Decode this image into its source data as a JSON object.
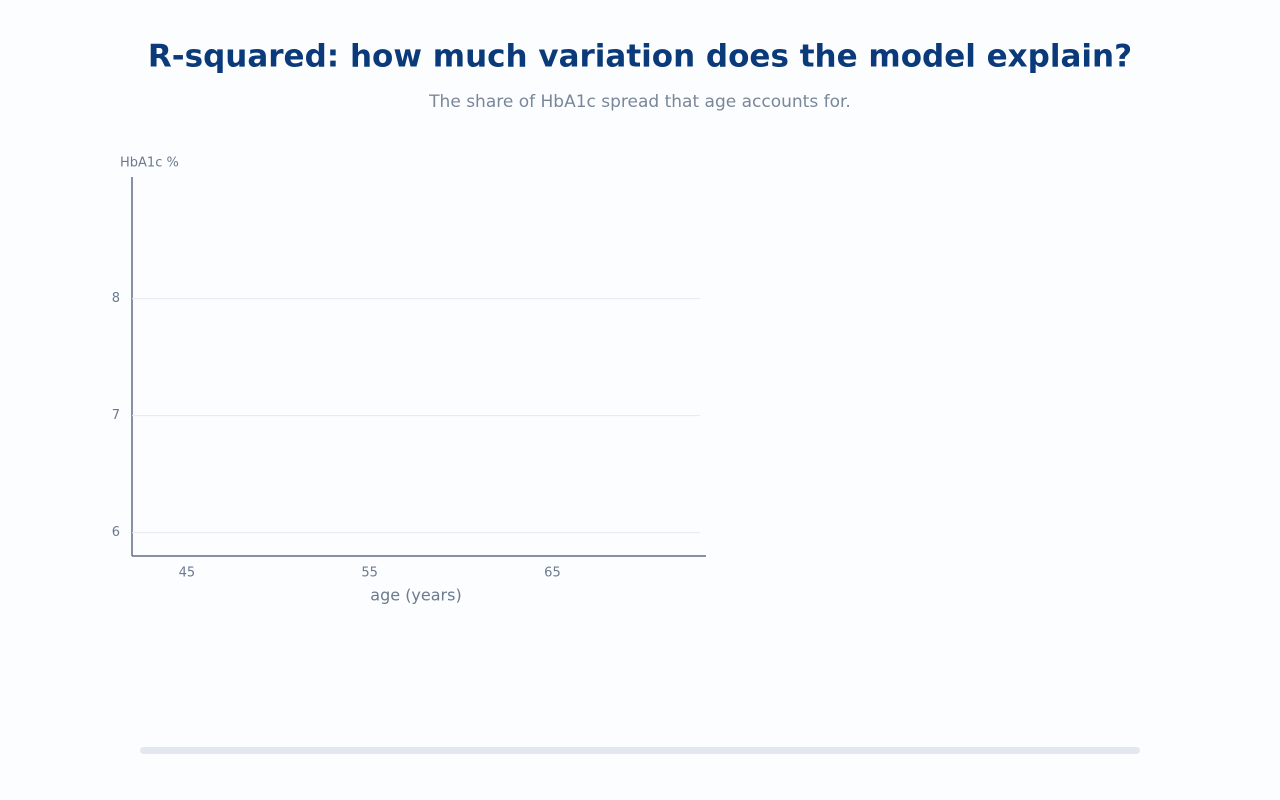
{
  "chart_data": {
    "type": "scatter",
    "title": "R-squared: how much variation does the model explain?",
    "subtitle": "The share of HbA1c spread that age accounts for.",
    "y_label": "HbA1c %",
    "x_label": "age (years)",
    "x": [],
    "y": [],
    "color": "#0b3a7a",
    "xlim": [
      42,
      73.4
    ],
    "xticks": [
      45,
      55,
      65
    ],
    "ylim": [
      5.8,
      9.04
    ],
    "yticks": [
      6,
      7,
      8
    ],
    "grid": true
  }
}
